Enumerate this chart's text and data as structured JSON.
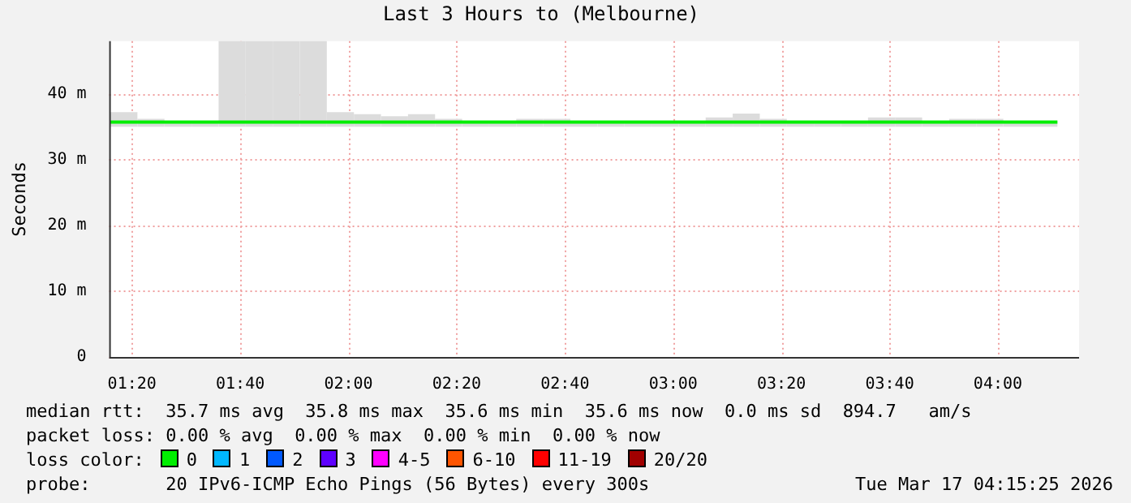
{
  "chart_data": {
    "type": "step",
    "title": "Last 3 Hours to (Melbourne)",
    "ylabel": "Seconds",
    "x": [
      1.2667,
      1.35,
      1.4333,
      1.5167,
      1.6,
      1.6833,
      1.7667,
      1.85,
      1.9333,
      2.0167,
      2.1,
      2.1833,
      2.2667,
      2.35,
      2.4333,
      2.5167,
      2.6,
      2.6833,
      2.7667,
      2.85,
      2.9333,
      3.0167,
      3.1,
      3.1833,
      3.2667,
      3.35,
      3.4333,
      3.5167,
      3.6,
      3.6833,
      3.7667,
      3.85,
      3.9333,
      4.0167,
      4.1,
      4.1833
    ],
    "series": [
      {
        "name": "0",
        "color": "#00ee00",
        "values": [
          35.7,
          35.7,
          35.7,
          35.7,
          35.7,
          35.7,
          35.7,
          35.7,
          35.7,
          35.7,
          35.7,
          35.7,
          35.7,
          35.7,
          35.7,
          35.7,
          35.7,
          35.7,
          35.7,
          35.7,
          35.7,
          35.7,
          35.7,
          35.7,
          35.7,
          35.7,
          35.7,
          35.7,
          35.7,
          35.7,
          35.7,
          35.7,
          35.7,
          35.7,
          35.7,
          35.7
        ],
        "lower": [
          35.0,
          35.0,
          35.0,
          35.0,
          35.0,
          35.0,
          35.0,
          35.0,
          35.0,
          35.0,
          35.0,
          35.0,
          35.0,
          35.0,
          35.0,
          35.0,
          35.0,
          35.0,
          35.0,
          35.0,
          35.0,
          35.0,
          35.0,
          35.0,
          35.0,
          35.0,
          35.0,
          35.0,
          35.0,
          35.0,
          35.0,
          35.0,
          35.0,
          35.0,
          35.0,
          35.0
        ],
        "upper": [
          37.2,
          36.2,
          35.9,
          35.9,
          48,
          48,
          48,
          48,
          37.2,
          36.9,
          36.6,
          36.9,
          36.2,
          35.9,
          35.9,
          36.2,
          36.2,
          35.9,
          35.9,
          35.9,
          35.9,
          35.9,
          36.4,
          37.0,
          36.2,
          35.9,
          35.9,
          35.9,
          36.4,
          36.4,
          35.9,
          36.2,
          36.2,
          35.9,
          35.9,
          35.9
        ]
      },
      {
        "name": "1",
        "color": "#00b8ff",
        "values": [
          null,
          null,
          null,
          null,
          null,
          null,
          null,
          null,
          null,
          null,
          null,
          null,
          null,
          null,
          null,
          null,
          null,
          null,
          null,
          null,
          null,
          null,
          null,
          null,
          null,
          null,
          null,
          null,
          null,
          null,
          null,
          null,
          null,
          null,
          null,
          null
        ]
      },
      {
        "name": "2",
        "color": "#0059ff",
        "values": [
          null,
          null,
          null,
          null,
          null,
          null,
          null,
          null,
          null,
          null,
          null,
          null,
          null,
          null,
          null,
          null,
          null,
          null,
          null,
          null,
          null,
          null,
          null,
          null,
          null,
          null,
          null,
          null,
          null,
          null,
          null,
          null,
          null,
          null,
          null,
          null
        ]
      },
      {
        "name": "3",
        "color": "#5e00ff",
        "values": [
          null,
          null,
          null,
          null,
          null,
          null,
          null,
          null,
          null,
          null,
          null,
          null,
          null,
          null,
          null,
          null,
          null,
          null,
          null,
          null,
          null,
          null,
          null,
          null,
          null,
          null,
          null,
          null,
          null,
          null,
          null,
          null,
          null,
          null,
          null,
          null
        ]
      },
      {
        "name": "4-5",
        "color": "#ff00ff",
        "values": [
          null,
          null,
          null,
          null,
          null,
          null,
          null,
          null,
          null,
          null,
          null,
          null,
          null,
          null,
          null,
          null,
          null,
          null,
          null,
          null,
          null,
          null,
          null,
          null,
          null,
          null,
          null,
          null,
          null,
          null,
          null,
          null,
          null,
          null,
          null,
          null
        ]
      },
      {
        "name": "6-10",
        "color": "#ff5500",
        "values": [
          null,
          null,
          null,
          null,
          null,
          null,
          null,
          null,
          null,
          null,
          null,
          null,
          null,
          null,
          null,
          null,
          null,
          null,
          null,
          null,
          null,
          null,
          null,
          null,
          null,
          null,
          null,
          null,
          null,
          null,
          null,
          null,
          null,
          null,
          null,
          null
        ]
      },
      {
        "name": "11-19",
        "color": "#ff0000",
        "values": [
          null,
          null,
          null,
          null,
          null,
          null,
          null,
          null,
          null,
          null,
          null,
          null,
          null,
          null,
          null,
          null,
          null,
          null,
          null,
          null,
          null,
          null,
          null,
          null,
          null,
          null,
          null,
          null,
          null,
          null,
          null,
          null,
          null,
          null,
          null,
          null
        ]
      },
      {
        "name": "20/20",
        "color": "#a10000",
        "values": [
          null,
          null,
          null,
          null,
          null,
          null,
          null,
          null,
          null,
          null,
          null,
          null,
          null,
          null,
          null,
          null,
          null,
          null,
          null,
          null,
          null,
          null,
          null,
          null,
          null,
          null,
          null,
          null,
          null,
          null,
          null,
          null,
          null,
          null,
          null,
          null
        ]
      }
    ],
    "xlim": [
      1.263,
      4.25
    ],
    "xticks": [
      {
        "value": 1.3333,
        "label": "01:20"
      },
      {
        "value": 1.6667,
        "label": "01:40"
      },
      {
        "value": 2,
        "label": "02:00"
      },
      {
        "value": 2.3333,
        "label": "02:20"
      },
      {
        "value": 2.6667,
        "label": "02:40"
      },
      {
        "value": 3,
        "label": "03:00"
      },
      {
        "value": 3.3333,
        "label": "03:20"
      },
      {
        "value": 3.6667,
        "label": "03:40"
      },
      {
        "value": 4,
        "label": "04:00"
      }
    ],
    "ylim": [
      0,
      48
    ],
    "yticks": [
      0,
      {
        "value": 10,
        "label": "10 m"
      },
      {
        "value": 20,
        "label": "20 m"
      },
      {
        "value": 30,
        "label": "30 m"
      },
      {
        "value": 40,
        "label": "40 m"
      }
    ],
    "grid": true,
    "legend": "bottom",
    "annotations": [
      "median rtt:  35.7 ms avg  35.8 ms max  35.6 ms min  35.6 ms now  0.0 ms sd  894.7   am/s",
      "packet loss: 0.00 % avg  0.00 % max  0.00 % min  0.00 % now",
      "loss color:",
      "probe:       20 IPv6-ICMP Echo Pings (56 Bytes) every 300s",
      "Tue Mar 17 04:15:25 2026"
    ]
  }
}
